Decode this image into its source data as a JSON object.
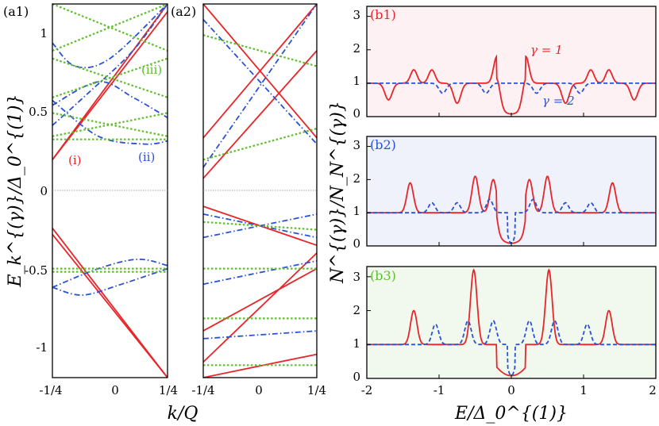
{
  "colors": {
    "red": "#e8262a",
    "blue": "#2a52d4",
    "green": "#5cbf2a",
    "bg_b1": "#fdf1f3",
    "bg_b2": "#eff1fb",
    "bg_b3": "#f1f9ee"
  },
  "left": {
    "ylabel": "E_k^{(γ)}/Δ_0^{(1)}",
    "xlabel": "k/Q",
    "xticks": [
      "-1/4",
      "0",
      "1/4"
    ],
    "yticks": [
      "1",
      "0.5",
      "0",
      "-0.5",
      "-1"
    ],
    "panel_a1": "(a1)",
    "panel_a2": "(a2)",
    "ann_i": "(i)",
    "ann_ii": "(ii)",
    "ann_iii": "(iii)"
  },
  "right": {
    "ylabel": "N^{(γ)}/N_N^{(γ)}",
    "xlabel": "E/Δ_0^{(1)}",
    "xticks": [
      "-2",
      "-1",
      "0",
      "1",
      "2"
    ],
    "yticks": [
      "0",
      "1",
      "2",
      "3"
    ],
    "panel_b1": "(b1)",
    "panel_b2": "(b2)",
    "panel_b3": "(b3)",
    "gamma1": "γ = 1",
    "gamma2": "γ = 2"
  },
  "chart_data": [
    {
      "type": "line",
      "panel": "(a1)",
      "x_range": [
        -0.25,
        0.25
      ],
      "ylim": [
        -1.2,
        1.2
      ],
      "series": [
        {
          "label": "(i)",
          "style": "solid",
          "color": "red",
          "curves": [
            {
              "x": [
                -0.25,
                0.25
              ],
              "y": [
                0.2,
                1.2
              ]
            },
            {
              "x": [
                -0.25,
                0.25
              ],
              "y": [
                0.2,
                1.15
              ]
            },
            {
              "x": [
                -0.25,
                0.25
              ],
              "y": [
                -0.24,
                -1.2
              ]
            },
            {
              "x": [
                -0.25,
                0.25
              ],
              "y": [
                -0.28,
                -1.2
              ]
            }
          ]
        },
        {
          "label": "(ii)",
          "style": "dash-dot",
          "color": "blue",
          "curves": [
            {
              "x": [
                -0.25,
                -0.1,
                0.1,
                0.25
              ],
              "y": [
                0.42,
                0.62,
                0.9,
                1.2
              ]
            },
            {
              "x": [
                -0.25,
                -0.05,
                0.15,
                0.25
              ],
              "y": [
                0.58,
                0.35,
                0.3,
                0.32
              ]
            },
            {
              "x": [
                -0.25,
                -0.15,
                0.0,
                0.25
              ],
              "y": [
                0.95,
                0.8,
                0.85,
                1.2
              ]
            },
            {
              "x": [
                -0.25,
                -0.05,
                0.1,
                0.25
              ],
              "y": [
                0.55,
                0.7,
                0.6,
                0.47
              ]
            },
            {
              "x": [
                -0.25,
                -0.05,
                0.12,
                0.25
              ],
              "y": [
                -0.62,
                -0.5,
                -0.44,
                -0.48
              ]
            },
            {
              "x": [
                -0.25,
                -0.12,
                0.05,
                0.25
              ],
              "y": [
                -0.62,
                -0.67,
                -0.6,
                -0.5
              ]
            }
          ]
        },
        {
          "label": "(iii)",
          "style": "dotted",
          "color": "green",
          "curves": [
            {
              "x": [
                -0.25,
                0.25
              ],
              "y": [
                1.2,
                0.9
              ]
            },
            {
              "x": [
                -0.25,
                0.25
              ],
              "y": [
                0.9,
                1.2
              ]
            },
            {
              "x": [
                -0.25,
                0.25
              ],
              "y": [
                0.85,
                0.6
              ]
            },
            {
              "x": [
                -0.25,
                0.25
              ],
              "y": [
                0.6,
                0.85
              ]
            },
            {
              "x": [
                -0.25,
                0.25
              ],
              "y": [
                0.5,
                0.35
              ]
            },
            {
              "x": [
                -0.25,
                0.25
              ],
              "y": [
                0.35,
                0.5
              ]
            },
            {
              "x": [
                -0.25,
                0.25
              ],
              "y": [
                0.33,
                0.33
              ]
            },
            {
              "x": [
                -0.25,
                0.25
              ],
              "y": [
                -0.5,
                -0.5
              ]
            },
            {
              "x": [
                -0.25,
                0.25
              ],
              "y": [
                -0.52,
                -0.52
              ]
            }
          ]
        }
      ]
    },
    {
      "type": "line",
      "panel": "(a2)",
      "x_range": [
        -0.25,
        0.25
      ],
      "ylim": [
        -1.2,
        1.2
      ],
      "series": [
        {
          "style": "solid",
          "color": "red",
          "curves": [
            {
              "x": [
                -0.25,
                0.25
              ],
              "y": [
                0.34,
                1.2
              ]
            },
            {
              "x": [
                -0.25,
                0.25
              ],
              "y": [
                1.2,
                0.34
              ]
            },
            {
              "x": [
                -0.25,
                0.25
              ],
              "y": [
                0.08,
                0.9
              ]
            },
            {
              "x": [
                -0.25,
                0.25
              ],
              "y": [
                -0.1,
                -0.35
              ]
            },
            {
              "x": [
                -0.25,
                0.25
              ],
              "y": [
                -0.9,
                -0.5
              ]
            },
            {
              "x": [
                -0.25,
                0.25
              ],
              "y": [
                -1.1,
                -0.4
              ]
            },
            {
              "x": [
                -0.25,
                0.25
              ],
              "y": [
                -1.2,
                -1.05
              ]
            }
          ]
        },
        {
          "style": "dash-dot",
          "color": "blue",
          "curves": [
            {
              "x": [
                -0.25,
                0.25
              ],
              "y": [
                0.15,
                1.2
              ]
            },
            {
              "x": [
                -0.25,
                0.25
              ],
              "y": [
                1.1,
                0.3
              ]
            },
            {
              "x": [
                -0.25,
                0.25
              ],
              "y": [
                -0.15,
                -0.3
              ]
            },
            {
              "x": [
                -0.25,
                0.25
              ],
              "y": [
                -0.3,
                -0.15
              ]
            },
            {
              "x": [
                -0.25,
                0.25
              ],
              "y": [
                -0.6,
                -0.45
              ]
            },
            {
              "x": [
                -0.25,
                0.25
              ],
              "y": [
                -0.95,
                -0.9
              ]
            }
          ]
        },
        {
          "style": "dotted",
          "color": "green",
          "curves": [
            {
              "x": [
                -0.25,
                0.25
              ],
              "y": [
                1.0,
                0.8
              ]
            },
            {
              "x": [
                -0.25,
                0.25
              ],
              "y": [
                0.2,
                0.4
              ]
            },
            {
              "x": [
                -0.25,
                0.25
              ],
              "y": [
                -0.2,
                -0.25
              ]
            },
            {
              "x": [
                -0.25,
                0.25
              ],
              "y": [
                -0.5,
                -0.5
              ]
            },
            {
              "x": [
                -0.25,
                0.25
              ],
              "y": [
                -0.82,
                -0.82
              ]
            },
            {
              "x": [
                -0.25,
                0.25
              ],
              "y": [
                -1.12,
                -1.12
              ]
            }
          ]
        }
      ]
    },
    {
      "type": "line",
      "panel": "(b1)",
      "xlim": [
        -2,
        2
      ],
      "ylim": [
        0,
        3.3
      ],
      "series": [
        {
          "name": "γ = 1",
          "color": "red",
          "style": "solid",
          "peaks": [
            {
              "x": -1.35,
              "h": 1.4
            },
            {
              "x": -1.1,
              "h": 1.4
            },
            {
              "x": -0.2,
              "h": 1.8
            },
            {
              "x": 0.2,
              "h": 1.8
            },
            {
              "x": 1.1,
              "h": 1.4
            },
            {
              "x": 1.35,
              "h": 1.4
            }
          ],
          "dips": [
            {
              "x": -1.7,
              "d": 0.5
            },
            {
              "x": -0.75,
              "d": 0.6
            },
            {
              "x": 0.75,
              "d": 0.6
            },
            {
              "x": 1.7,
              "d": 0.5
            }
          ],
          "gap": [
            -0.2,
            0.2
          ]
        },
        {
          "name": "γ = 2",
          "color": "blue",
          "style": "dashed",
          "dips": [
            {
              "x": -0.95,
              "d": 0.3
            },
            {
              "x": -0.35,
              "d": 0.3
            },
            {
              "x": 0.35,
              "d": 0.3
            },
            {
              "x": 0.95,
              "d": 0.3
            }
          ]
        }
      ]
    },
    {
      "type": "line",
      "panel": "(b2)",
      "xlim": [
        -2,
        2
      ],
      "ylim": [
        0,
        3.3
      ],
      "series": [
        {
          "name": "γ = 1",
          "color": "red",
          "style": "solid",
          "peaks": [
            {
              "x": -1.4,
              "h": 1.9
            },
            {
              "x": -0.5,
              "h": 2.1
            },
            {
              "x": -0.25,
              "h": 2.0
            },
            {
              "x": 0.25,
              "h": 2.0
            },
            {
              "x": 0.5,
              "h": 2.1
            },
            {
              "x": 1.4,
              "h": 1.9
            }
          ],
          "gap": [
            -0.2,
            0.2
          ]
        },
        {
          "name": "γ = 2",
          "color": "blue",
          "style": "dashed",
          "peaks": [
            {
              "x": -1.1,
              "h": 1.3
            },
            {
              "x": -0.75,
              "h": 1.3
            },
            {
              "x": -0.3,
              "h": 1.4
            },
            {
              "x": 0.3,
              "h": 1.4
            },
            {
              "x": 0.75,
              "h": 1.3
            },
            {
              "x": 1.1,
              "h": 1.3
            }
          ],
          "gap": [
            -0.05,
            0.05
          ]
        }
      ]
    },
    {
      "type": "line",
      "panel": "(b3)",
      "xlim": [
        -2,
        2
      ],
      "ylim": [
        0,
        3.3
      ],
      "series": [
        {
          "name": "γ = 1",
          "color": "red",
          "style": "solid",
          "peaks": [
            {
              "x": -1.35,
              "h": 2.0
            },
            {
              "x": -0.52,
              "h": 3.2
            },
            {
              "x": 0.52,
              "h": 3.2
            },
            {
              "x": 1.35,
              "h": 2.0
            }
          ],
          "gap": [
            -0.2,
            0.2
          ]
        },
        {
          "name": "γ = 2",
          "color": "blue",
          "style": "dashed",
          "peaks": [
            {
              "x": -1.05,
              "h": 1.6
            },
            {
              "x": -0.6,
              "h": 1.7
            },
            {
              "x": -0.25,
              "h": 1.7
            },
            {
              "x": 0.25,
              "h": 1.7
            },
            {
              "x": 0.6,
              "h": 1.7
            },
            {
              "x": 1.05,
              "h": 1.6
            }
          ],
          "gap": [
            -0.05,
            0.05
          ]
        }
      ]
    }
  ]
}
